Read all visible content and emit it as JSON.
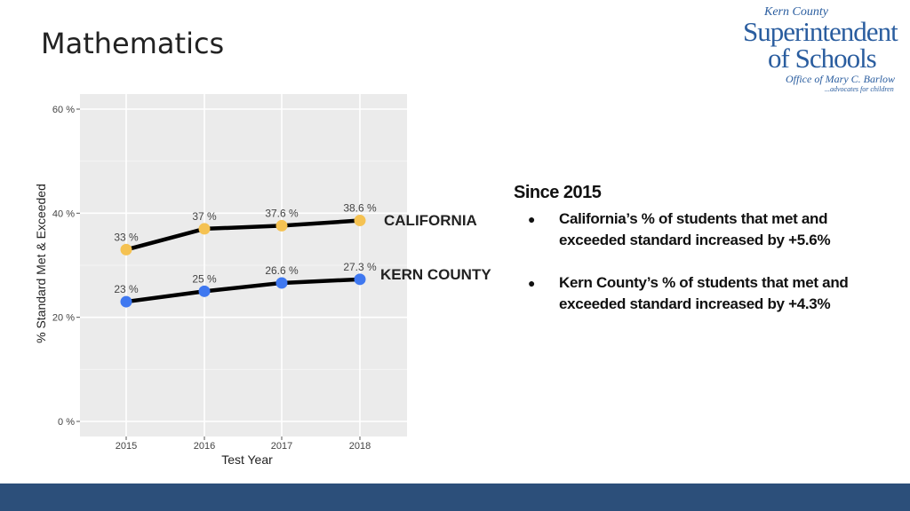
{
  "page": {
    "title": "Mathematics"
  },
  "logo": {
    "line1": "Kern County",
    "line2": "Superintendent",
    "line3": "of Schools",
    "line4": "Office of Mary C. Barlow",
    "line5": "...advocates for children"
  },
  "chart_data": {
    "type": "line",
    "title": "",
    "xlabel": "Test Year",
    "ylabel": "% Standard Met & Exceeded",
    "categories": [
      "2015",
      "2016",
      "2017",
      "2018"
    ],
    "ylim": [
      0,
      60
    ],
    "yticks": [
      0,
      20,
      40,
      60
    ],
    "ytick_labels": [
      "0 %",
      "20 %",
      "40 %",
      "60 %"
    ],
    "grid": true,
    "series": [
      {
        "name": "CALIFORNIA",
        "values": [
          33,
          37,
          37.6,
          38.6
        ],
        "labels": [
          "33 %",
          "37 %",
          "37.6 %",
          "38.6 %"
        ],
        "color": "#f5c252"
      },
      {
        "name": "KERN COUNTY",
        "values": [
          23,
          25,
          26.6,
          27.3
        ],
        "labels": [
          "23 %",
          "25 %",
          "26.6 %",
          "27.3 %"
        ],
        "color": "#3f78f0"
      }
    ],
    "line_color": "#000000",
    "panel_color": "#ebebeb"
  },
  "notes": {
    "heading": "Since 2015",
    "items": [
      {
        "bullet": "●",
        "text": "California’s % of students that met and exceeded standard increased by  +5.6%"
      },
      {
        "bullet": "●",
        "text": "Kern County’s % of students that met and exceeded standard increased by  +4.3%"
      }
    ]
  },
  "colors": {
    "footer": "#2c4f7a",
    "logo": "#2a5d9f"
  }
}
